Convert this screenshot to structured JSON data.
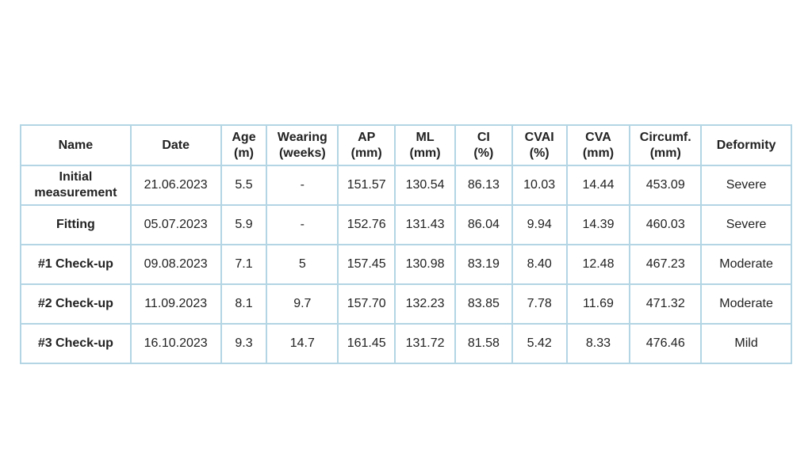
{
  "table": {
    "header": [
      [
        "Name"
      ],
      [
        "Date"
      ],
      [
        "Age",
        "(m)"
      ],
      [
        "Wearing",
        "(weeks)"
      ],
      [
        "AP",
        "(mm)"
      ],
      [
        "ML",
        "(mm)"
      ],
      [
        "CI",
        "(%)"
      ],
      [
        "CVAI",
        "(%)"
      ],
      [
        "CVA",
        "(mm)"
      ],
      [
        "Circumf.",
        "(mm)"
      ],
      [
        "Deformity"
      ]
    ],
    "rows": [
      [
        "Initial measurement",
        "21.06.2023",
        "5.5",
        "-",
        "151.57",
        "130.54",
        "86.13",
        "10.03",
        "14.44",
        "453.09",
        "Severe"
      ],
      [
        "Fitting",
        "05.07.2023",
        "5.9",
        "-",
        "152.76",
        "131.43",
        "86.04",
        "9.94",
        "14.39",
        "460.03",
        "Severe"
      ],
      [
        "#1 Check-up",
        "09.08.2023",
        "7.1",
        "5",
        "157.45",
        "130.98",
        "83.19",
        "8.40",
        "12.48",
        "467.23",
        "Moderate"
      ],
      [
        "#2 Check-up",
        "11.09.2023",
        "8.1",
        "9.7",
        "157.70",
        "132.23",
        "83.85",
        "7.78",
        "11.69",
        "471.32",
        "Moderate"
      ],
      [
        "#3 Check-up",
        "16.10.2023",
        "9.3",
        "14.7",
        "161.45",
        "131.72",
        "81.58",
        "5.42",
        "8.33",
        "476.46",
        "Mild"
      ]
    ]
  }
}
